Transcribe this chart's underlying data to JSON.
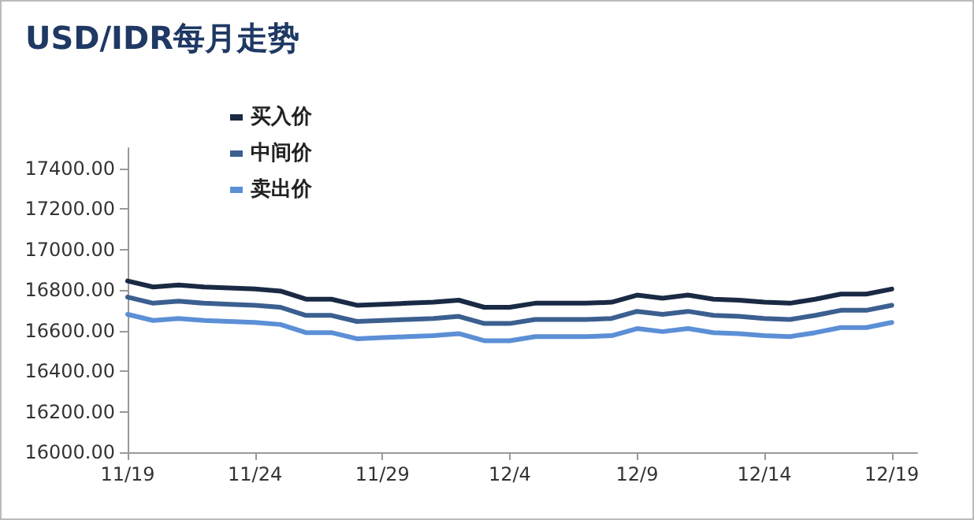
{
  "chart_data": {
    "type": "line",
    "title": "USD/IDR每月走势",
    "x": [
      "--11-19",
      "--11-20",
      "--11-21",
      "--11-22",
      "--11-23",
      "--11-24",
      "--11-25",
      "--11-26",
      "--11-27",
      "--11-28",
      "--11-29",
      "--11-30",
      "--12-01",
      "--12-02",
      "--12-03",
      "--12-04",
      "--12-05",
      "--12-06",
      "--12-07",
      "--12-08",
      "--12-09",
      "--12-10",
      "--12-11",
      "--12-12",
      "--12-13",
      "--12-14",
      "--12-15",
      "--12-16",
      "--12-17",
      "--12-18",
      "--12-19"
    ],
    "series": [
      {
        "name": "买入价",
        "color": "#1a2a44",
        "values": [
          16845,
          16815,
          16825,
          16815,
          16810,
          16805,
          16795,
          16755,
          16755,
          16725,
          16730,
          16735,
          16740,
          16750,
          16715,
          16715,
          16735,
          16735,
          16735,
          16740,
          16775,
          16760,
          16775,
          16755,
          16750,
          16740,
          16735,
          16755,
          16780,
          16780,
          16805
        ]
      },
      {
        "name": "中间价",
        "color": "#3b5f8f",
        "values": [
          16765,
          16735,
          16745,
          16735,
          16730,
          16725,
          16715,
          16675,
          16675,
          16645,
          16650,
          16655,
          16660,
          16670,
          16635,
          16635,
          16655,
          16655,
          16655,
          16660,
          16695,
          16680,
          16695,
          16675,
          16670,
          16660,
          16655,
          16675,
          16700,
          16700,
          16725
        ]
      },
      {
        "name": "卖出价",
        "color": "#5b8fd6",
        "values": [
          16680,
          16650,
          16660,
          16650,
          16645,
          16640,
          16630,
          16590,
          16590,
          16560,
          16565,
          16570,
          16575,
          16585,
          16550,
          16550,
          16570,
          16570,
          16570,
          16575,
          16610,
          16595,
          16610,
          16590,
          16585,
          16575,
          16570,
          16590,
          16615,
          16615,
          16640
        ]
      }
    ],
    "xlim": [
      "--11-19",
      "--12-20"
    ],
    "xticks": [
      {
        "value": "--11-19",
        "label": "11/19"
      },
      {
        "value": "--11-24",
        "label": "11/24"
      },
      {
        "value": "--11-29",
        "label": "11/29"
      },
      {
        "value": "--12-04",
        "label": "12/4"
      },
      {
        "value": "--12-09",
        "label": "12/9"
      },
      {
        "value": "--12-14",
        "label": "12/14"
      },
      {
        "value": "--12-19",
        "label": "12/19"
      }
    ],
    "ylim": [
      16000,
      17500
    ],
    "yticks": [
      {
        "value": 16000,
        "label": "16000.00"
      },
      {
        "value": 16200,
        "label": "16200.00"
      },
      {
        "value": 16400,
        "label": "16400.00"
      },
      {
        "value": 16600,
        "label": "16600.00"
      },
      {
        "value": 16800,
        "label": "16800.00"
      },
      {
        "value": 17000,
        "label": "17000.00"
      },
      {
        "value": 17200,
        "label": "17200.00"
      },
      {
        "value": 17400,
        "label": "17400.00"
      }
    ],
    "grid": false,
    "legend": "top left",
    "marker": "none",
    "line_style": "solid"
  }
}
